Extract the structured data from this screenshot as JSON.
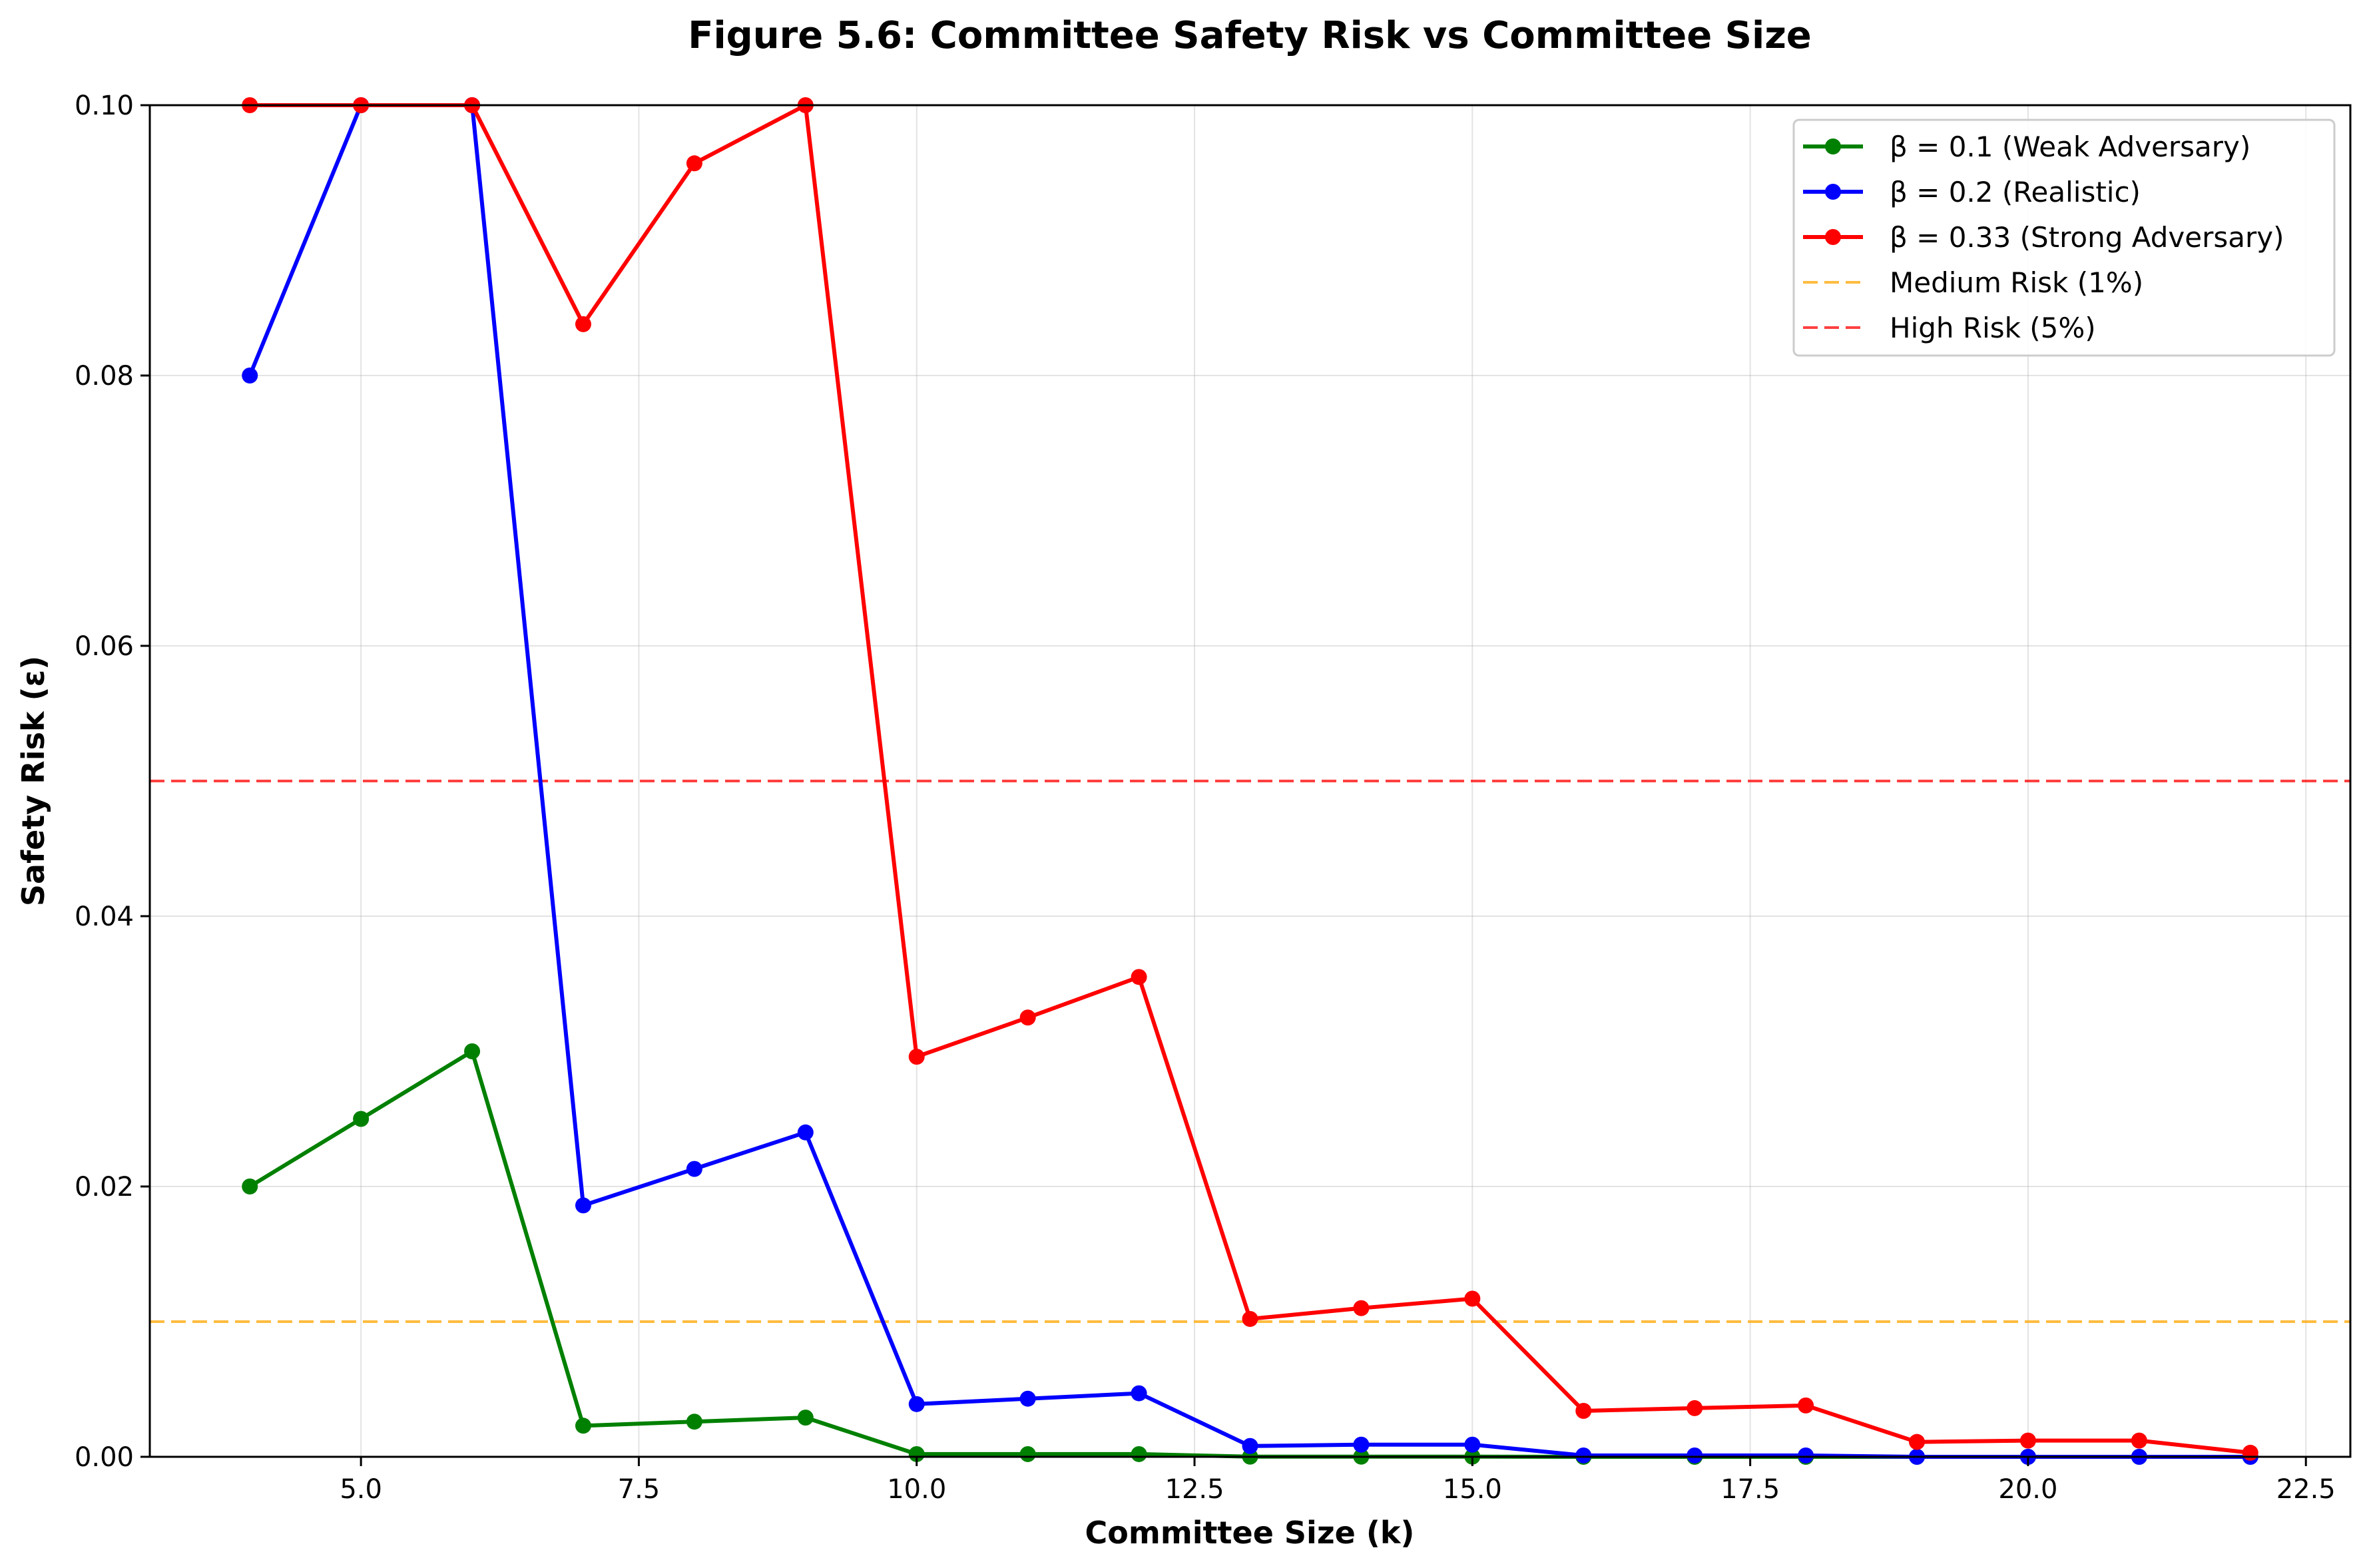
{
  "chart_data": {
    "type": "line",
    "title": "Figure 5.6: Committee Safety Risk vs Committee Size",
    "xlabel": "Committee Size (k)",
    "ylabel": "Safety Risk (ε)",
    "xlim": [
      3.1,
      22.9
    ],
    "ylim": [
      0,
      0.1
    ],
    "xticks": [
      5.0,
      7.5,
      10.0,
      12.5,
      15.0,
      17.5,
      20.0,
      22.5
    ],
    "xtick_labels": [
      "5.0",
      "7.5",
      "10.0",
      "12.5",
      "15.0",
      "17.5",
      "20.0",
      "22.5"
    ],
    "yticks": [
      0,
      0.02,
      0.04,
      0.06,
      0.08,
      0.1
    ],
    "ytick_labels": [
      "0.00",
      "0.02",
      "0.04",
      "0.06",
      "0.08",
      "0.10"
    ],
    "grid": true,
    "legend_position": "top-right",
    "x": [
      4,
      5,
      6,
      7,
      8,
      9,
      10,
      11,
      12,
      13,
      14,
      15,
      16,
      17,
      18,
      19,
      20,
      21,
      22
    ],
    "series": [
      {
        "name": "β = 0.1 (Weak Adversary)",
        "color": "#008000",
        "values": [
          0.02,
          0.025,
          0.03,
          0.0023,
          0.0026,
          0.0029,
          0.0002,
          0.0002,
          0.0002,
          1e-05,
          1e-05,
          1e-05,
          0.0,
          0.0,
          0.0,
          0.0,
          0.0,
          0.0,
          0.0
        ]
      },
      {
        "name": "β = 0.2 (Realistic)",
        "color": "#0000ff",
        "values": [
          0.08,
          0.1,
          0.1,
          0.0186,
          0.0213,
          0.024,
          0.0039,
          0.0043,
          0.0047,
          0.0008,
          0.0009,
          0.0009,
          0.0001,
          0.0001,
          0.0001,
          0.0,
          0.0,
          0.0,
          0.0
        ]
      },
      {
        "name": "β = 0.33 (Strong Adversary)",
        "color": "#ff0000",
        "values": [
          0.1,
          0.1,
          0.1,
          0.0838,
          0.0957,
          0.1,
          0.0296,
          0.0325,
          0.0355,
          0.0102,
          0.011,
          0.0117,
          0.0034,
          0.0036,
          0.0038,
          0.0011,
          0.0012,
          0.0012,
          0.0003
        ]
      }
    ],
    "reference_lines": [
      {
        "name": "Medium Risk (1%)",
        "y": 0.01,
        "color": "#ffa500"
      },
      {
        "name": "High Risk (5%)",
        "y": 0.05,
        "color": "#ff0000"
      }
    ]
  }
}
